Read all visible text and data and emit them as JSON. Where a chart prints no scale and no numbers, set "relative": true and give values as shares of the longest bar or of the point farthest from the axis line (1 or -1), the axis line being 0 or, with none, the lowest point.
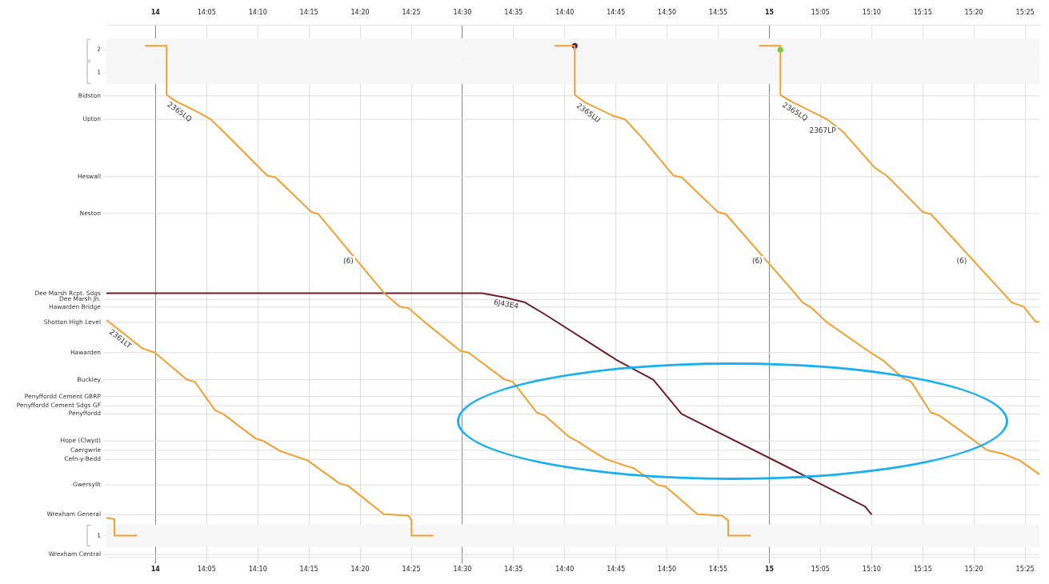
{
  "chart_data": {
    "type": "line",
    "relative": true,
    "xlim": [
      13.92,
      15.44
    ],
    "xticks": [
      {
        "value": 14,
        "label": "14"
      },
      {
        "value": 14.0833,
        "label": "14:05"
      },
      {
        "value": 14.1667,
        "label": "14:10"
      },
      {
        "value": 14.25,
        "label": "14:15"
      },
      {
        "value": 14.3333,
        "label": "14:20"
      },
      {
        "value": 14.4167,
        "label": "14:25"
      },
      {
        "value": 14.5,
        "label": "14:30"
      },
      {
        "value": 14.5833,
        "label": "14:35"
      },
      {
        "value": 14.6667,
        "label": "14:40"
      },
      {
        "value": 14.75,
        "label": "14:45"
      },
      {
        "value": 14.8333,
        "label": "14:50"
      },
      {
        "value": 14.9167,
        "label": "14:55"
      },
      {
        "value": 15,
        "label": "15"
      },
      {
        "value": 15.0833,
        "label": "15:05"
      },
      {
        "value": 15.1667,
        "label": "15:10"
      },
      {
        "value": 15.25,
        "label": "15:15"
      },
      {
        "value": 15.3333,
        "label": "15:20"
      },
      {
        "value": 15.4167,
        "label": "15:25"
      }
    ],
    "x2lim": [
      13.92,
      15.44
    ],
    "x2ticks": [
      {
        "value": 14,
        "label": "14"
      },
      {
        "value": 14.0833,
        "label": "14:05"
      },
      {
        "value": 14.1667,
        "label": "14:10"
      },
      {
        "value": 14.25,
        "label": "14:15"
      },
      {
        "value": 14.3333,
        "label": "14:20"
      },
      {
        "value": 14.4167,
        "label": "14:25"
      },
      {
        "value": 14.5,
        "label": "14:30"
      },
      {
        "value": 14.5833,
        "label": "14:35"
      },
      {
        "value": 14.6667,
        "label": "14:40"
      },
      {
        "value": 14.75,
        "label": "14:45"
      },
      {
        "value": 14.8333,
        "label": "14:50"
      },
      {
        "value": 14.9167,
        "label": "14:55"
      },
      {
        "value": 15,
        "label": "15"
      },
      {
        "value": 15.0833,
        "label": "15:05"
      },
      {
        "value": 15.1667,
        "label": "15:10"
      },
      {
        "value": 15.25,
        "label": "15:15"
      },
      {
        "value": 15.3333,
        "label": "15:20"
      },
      {
        "value": 15.4167,
        "label": "15:25"
      }
    ],
    "bands": [
      {
        "axis": "y",
        "from": 0.97,
        "to": 1.014,
        "label": "2",
        "color": "#f6f6f6"
      },
      {
        "axis": "y",
        "from": 0.925,
        "to": 0.97,
        "label": "1",
        "color": "#f6f6f6"
      },
      {
        "axis": "y",
        "from": 0.02,
        "to": 0.064,
        "label": "1",
        "color": "#f6f6f6"
      }
    ],
    "ref_lines": [
      {
        "axis": "y",
        "value": 0.992,
        "label": null
      },
      {
        "axis": "y",
        "value": 0.947,
        "label": null
      },
      {
        "axis": "y",
        "value": 0.902,
        "label": "Bidston"
      },
      {
        "axis": "y",
        "value": 0.856,
        "label": "Upton"
      },
      {
        "axis": "y",
        "value": 0.744,
        "label": "Heswall"
      },
      {
        "axis": "y",
        "value": 0.672,
        "label": "Neston"
      },
      {
        "axis": "y",
        "value": 0.516,
        "label": "Dee Marsh Rcpt. Sdgs"
      },
      {
        "axis": "y",
        "value": 0.504,
        "label": "Dee Marsh Jn."
      },
      {
        "axis": "y",
        "value": 0.489,
        "label": "Hawarden Bridge"
      },
      {
        "axis": "y",
        "value": 0.459,
        "label": "Shotton High Level"
      },
      {
        "axis": "y",
        "value": 0.4,
        "label": "Hawarden"
      },
      {
        "axis": "y",
        "value": 0.347,
        "label": "Buckley"
      },
      {
        "axis": "y",
        "value": 0.314,
        "label": "Penyffordd Cement GBRP"
      },
      {
        "axis": "y",
        "value": 0.296,
        "label": "Penyffordd Cement Sdgs GF"
      },
      {
        "axis": "y",
        "value": 0.28,
        "label": "Penyffordd"
      },
      {
        "axis": "y",
        "value": 0.227,
        "label": "Hope (Clwyd)"
      },
      {
        "axis": "y",
        "value": 0.209,
        "label": "Caergwrle"
      },
      {
        "axis": "y",
        "value": 0.191,
        "label": "Cefn-y-Bedd"
      },
      {
        "axis": "y",
        "value": 0.141,
        "label": "Gwersyllt"
      },
      {
        "axis": "y",
        "value": 0.083,
        "label": "Wrexham General"
      },
      {
        "axis": "y",
        "value": 0.042,
        "label": null
      },
      {
        "axis": "y",
        "value": 0.005,
        "label": "Wrexham Central"
      }
    ],
    "grid": "x",
    "legend": false,
    "marker": "none",
    "line_style": "solid",
    "series": [
      {
        "name": "2365LQ",
        "color": "#f0a030",
        "x": [
          13.984,
          14.018,
          14.018,
          14.031,
          14.071,
          14.09,
          14.11,
          14.182,
          14.195,
          14.254,
          14.265,
          14.372,
          14.383,
          14.398,
          14.412,
          14.438,
          14.497,
          14.51,
          14.569,
          14.582,
          14.621,
          14.634,
          14.674,
          14.687,
          14.706,
          14.733,
          14.765,
          14.779,
          14.818,
          14.831,
          14.883,
          14.923,
          14.933,
          14.933,
          14.969
        ],
        "values": [
          1,
          1,
          0.904,
          0.893,
          0.869,
          0.856,
          0.833,
          0.746,
          0.743,
          0.675,
          0.671,
          0.517,
          0.505,
          0.49,
          0.487,
          0.46,
          0.403,
          0.4,
          0.347,
          0.343,
          0.283,
          0.277,
          0.235,
          0.227,
          0.212,
          0.192,
          0.179,
          0.174,
          0.141,
          0.138,
          0.084,
          0.081,
          0.072,
          0.042,
          0.042
        ]
      },
      {
        "name": "2365LU",
        "color": "#f0a030",
        "x": [
          14.651,
          14.683,
          14.683,
          14.7,
          14.746,
          14.765,
          14.792,
          14.844,
          14.857,
          14.916,
          14.929,
          15.041,
          15.054,
          15.067,
          15.093,
          15.165,
          15.185,
          15.218,
          15.231,
          15.263,
          15.277,
          15.329,
          15.355,
          15.381,
          15.408,
          15.44
        ],
        "values": [
          1,
          1,
          0.904,
          0.889,
          0.863,
          0.856,
          0.821,
          0.746,
          0.743,
          0.675,
          0.671,
          0.517,
          0.498,
          0.489,
          0.46,
          0.4,
          0.385,
          0.35,
          0.343,
          0.283,
          0.277,
          0.232,
          0.209,
          0.202,
          0.189,
          0.162
        ]
      },
      {
        "name": "2365LQ",
        "color": "#f0a030",
        "x": [
          14.984,
          15.018,
          15.018,
          15.034,
          15.093,
          15.119,
          15.172,
          15.191,
          15.25,
          15.263,
          15.395,
          15.414,
          15.434,
          15.44
        ],
        "values": [
          1,
          1,
          0.904,
          0.892,
          0.857,
          0.833,
          0.761,
          0.746,
          0.675,
          0.671,
          0.498,
          0.49,
          0.46,
          0.46
        ]
      },
      {
        "name": "2361LT",
        "color": "#f0a030",
        "x": [
          13.921,
          13.94,
          13.979,
          13.999,
          14.051,
          14.064,
          14.097,
          14.11,
          14.163,
          14.176,
          14.202,
          14.221,
          14.248,
          14.3,
          14.313,
          14.372,
          14.412,
          14.417,
          14.417,
          14.452
        ],
        "values": [
          0.463,
          0.445,
          0.408,
          0.4,
          0.347,
          0.343,
          0.287,
          0.28,
          0.232,
          0.227,
          0.208,
          0.2,
          0.189,
          0.144,
          0.14,
          0.084,
          0.081,
          0.072,
          0.042,
          0.042
        ]
      },
      {
        "color": "#f0a030",
        "x": [
          13.921,
          13.933,
          13.933,
          13.969
        ],
        "values": [
          0.077,
          0.074,
          0.042,
          0.042
        ]
      },
      {
        "name": "6J43E4",
        "color": "#6b1f2e",
        "x": [
          13.921,
          14.532,
          14.569,
          14.602,
          14.634,
          14.752,
          14.811,
          14.857,
          15.028,
          15.156,
          15.166
        ],
        "values": [
          0.516,
          0.516,
          0.508,
          0.498,
          0.475,
          0.385,
          0.347,
          0.28,
          0.177,
          0.099,
          0.084
        ]
      },
      {
        "type": "scatter",
        "marker": "circle",
        "color": "#4a1060",
        "x": [
          14.683
        ],
        "values": [
          1
        ]
      },
      {
        "type": "scatter",
        "marker": "circle",
        "color": "#40e040",
        "x": [
          15.018
        ],
        "values": [
          0.992
        ]
      }
    ],
    "annotations": [
      {
        "text": "(6)",
        "x": 14.333,
        "y": 0.579
      },
      {
        "text": "(6)",
        "x": 14.999,
        "y": 0.579
      },
      {
        "text": "(6)",
        "x": 15.332,
        "y": 0.579
      },
      {
        "text": "2367LP",
        "x": 15.119,
        "y": 0.833
      }
    ]
  }
}
